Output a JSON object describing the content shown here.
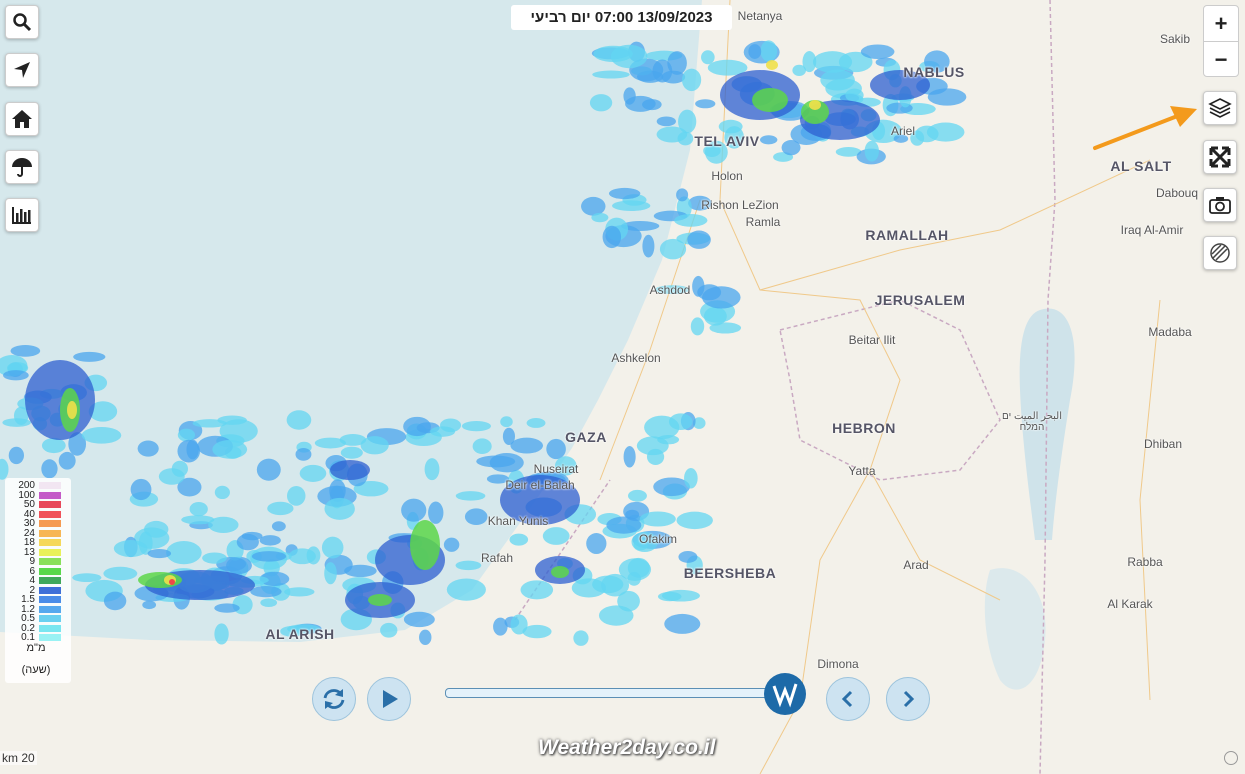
{
  "header": {
    "timestamp": "13/09/2023 07:00 יום רביעי"
  },
  "map": {
    "labels": [
      "Netanya",
      "Sakib",
      "NABLUS",
      "TEL AVIV",
      "Ariel",
      "Holon",
      "AL SALT",
      "Dabouq",
      "Rishon LeZion",
      "Ramla",
      "Iraq Al-Amir",
      "RAMALLAH",
      "Ashdod",
      "JERUSALEM",
      "Madaba",
      "Beitar Ilit",
      "Ashkelon",
      "البحر الميت ים המלח",
      "GAZA",
      "HEBRON",
      "Dhiban",
      "Nuseirat",
      "Deir el-Balah",
      "Yatta",
      "Khan Yunis",
      "Ofakim",
      "Rafah",
      "Arad",
      "BEERSHEBA",
      "Rabba",
      "Al Karak",
      "AL ARISH",
      "Dimona"
    ]
  },
  "zoom": {
    "in": "+",
    "out": "−"
  },
  "legend": {
    "values": [
      "200",
      "100",
      "50",
      "40",
      "30",
      "24",
      "18",
      "13",
      "9",
      "6",
      "4",
      "2",
      "1.5",
      "1.2",
      "0.5",
      "0.2",
      "0.1"
    ],
    "unit": "מ\"מ",
    "period": "(שעה)"
  },
  "scale": "km 20",
  "brand": "Weather2day.co.il"
}
